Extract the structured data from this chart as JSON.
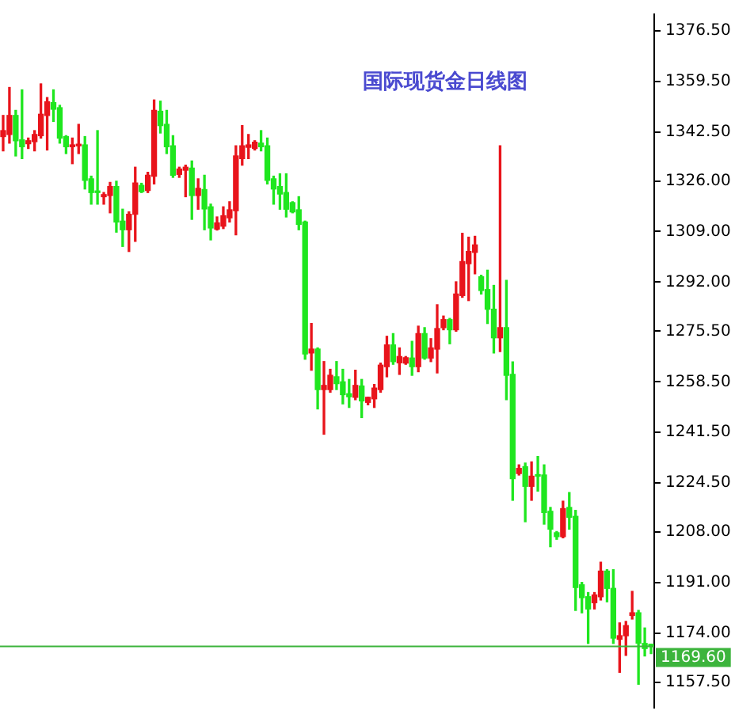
{
  "chart_data": {
    "type": "candlestick",
    "title": "国际现货金日线图",
    "categories": [
      null,
      null,
      null,
      null,
      null,
      null,
      null,
      null,
      null,
      null,
      null,
      null,
      null,
      null,
      null,
      null,
      null,
      null,
      null,
      null,
      null,
      null,
      null,
      null,
      null,
      null,
      null,
      null,
      null,
      null,
      null,
      null,
      null,
      null,
      null,
      null,
      null,
      null,
      null,
      null,
      null,
      null,
      null,
      null,
      null,
      null,
      null,
      null,
      null,
      null,
      null,
      null,
      null,
      null,
      null,
      null,
      null,
      null,
      null,
      null,
      null,
      null,
      null,
      null,
      null,
      null,
      null,
      null,
      null,
      null,
      null,
      null,
      null,
      null,
      null,
      null,
      null,
      null,
      null,
      null,
      null,
      null,
      null,
      null,
      null,
      null,
      null,
      null,
      null,
      null,
      null,
      null,
      null,
      null,
      null,
      null,
      null,
      null,
      null,
      null,
      null,
      null,
      null,
      null
    ],
    "ohlc": [
      [
        1340.9,
        1348.0,
        1336.1,
        1342.9
      ],
      [
        1341.6,
        1357.4,
        1338.7,
        1348.0
      ],
      [
        1348.0,
        1349.7,
        1334.4,
        1339.5
      ],
      [
        1339.8,
        1356.6,
        1333.5,
        1337.5
      ],
      [
        1338.5,
        1340.4,
        1336.9,
        1339.5
      ],
      [
        1339.2,
        1342.9,
        1336.1,
        1341.6
      ],
      [
        1341.2,
        1358.6,
        1340.4,
        1348.4
      ],
      [
        1348.0,
        1354.0,
        1336.4,
        1352.6
      ],
      [
        1352.3,
        1356.6,
        1346.0,
        1350.1
      ],
      [
        1350.6,
        1351.4,
        1338.7,
        1340.4
      ],
      [
        1340.9,
        1341.2,
        1335.2,
        1337.5
      ],
      [
        1337.5,
        1340.4,
        1331.8,
        1338.1
      ],
      [
        1337.8,
        1345.0,
        1335.2,
        1338.1
      ],
      [
        1338.1,
        1340.9,
        1323.3,
        1326.2
      ],
      [
        1326.7,
        1327.6,
        1318.2,
        1322.1
      ],
      [
        1322.4,
        1342.9,
        1318.2,
        1322.1
      ],
      [
        1320.7,
        1322.1,
        1318.2,
        1321.4
      ],
      [
        1321.1,
        1325.5,
        1315.3,
        1324.1
      ],
      [
        1324.1,
        1325.9,
        1308.8,
        1312.2
      ],
      [
        1312.5,
        1316.5,
        1304.0,
        1309.6
      ],
      [
        1309.6,
        1315.6,
        1302.3,
        1314.8
      ],
      [
        1314.8,
        1330.6,
        1305.7,
        1325.3
      ],
      [
        1324.5,
        1325.2,
        1322.1,
        1322.4
      ],
      [
        1322.8,
        1328.9,
        1322.1,
        1327.9
      ],
      [
        1327.6,
        1353.2,
        1325.0,
        1349.7
      ],
      [
        1349.4,
        1352.8,
        1342.1,
        1344.6
      ],
      [
        1345.0,
        1349.7,
        1335.2,
        1337.5
      ],
      [
        1337.8,
        1341.2,
        1327.2,
        1327.9
      ],
      [
        1328.2,
        1330.6,
        1327.2,
        1330.0
      ],
      [
        1329.6,
        1331.3,
        1320.7,
        1330.6
      ],
      [
        1330.3,
        1332.7,
        1313.1,
        1321.1
      ],
      [
        1321.1,
        1326.7,
        1316.5,
        1323.5
      ],
      [
        1323.1,
        1327.9,
        1309.6,
        1316.6
      ],
      [
        1317.3,
        1318.2,
        1306.2,
        1310.2
      ],
      [
        1309.8,
        1313.9,
        1309.5,
        1311.9
      ],
      [
        1310.8,
        1317.3,
        1310.0,
        1314.3
      ],
      [
        1313.6,
        1319.0,
        1312.2,
        1316.3
      ],
      [
        1316.0,
        1337.8,
        1307.9,
        1334.4
      ],
      [
        1333.5,
        1344.6,
        1331.3,
        1337.8
      ],
      [
        1337.3,
        1341.6,
        1333.5,
        1338.1
      ],
      [
        1336.9,
        1339.5,
        1336.4,
        1339.0
      ],
      [
        1338.7,
        1342.9,
        1336.1,
        1337.5
      ],
      [
        1337.8,
        1340.4,
        1325.0,
        1326.2
      ],
      [
        1326.7,
        1327.6,
        1318.2,
        1323.3
      ],
      [
        1324.1,
        1328.4,
        1316.5,
        1321.6
      ],
      [
        1322.1,
        1328.4,
        1313.9,
        1316.5
      ],
      [
        1318.7,
        1319.0,
        1315.3,
        1315.6
      ],
      [
        1316.3,
        1320.7,
        1309.6,
        1311.4
      ],
      [
        1312.2,
        1312.5,
        1266.1,
        1267.9
      ],
      [
        1268.2,
        1278.1,
        1262.4,
        1269.5
      ],
      [
        1269.5,
        1269.9,
        1249.4,
        1255.9
      ],
      [
        1255.9,
        1265.3,
        1240.9,
        1257.3
      ],
      [
        1255.9,
        1262.7,
        1255.0,
        1260.7
      ],
      [
        1260.2,
        1265.3,
        1255.9,
        1257.9
      ],
      [
        1258.5,
        1262.7,
        1251.1,
        1254.2
      ],
      [
        1254.5,
        1259.3,
        1249.9,
        1253.5
      ],
      [
        1253.3,
        1262.4,
        1252.5,
        1257.3
      ],
      [
        1257.1,
        1259.3,
        1246.5,
        1252.1
      ],
      [
        1251.6,
        1253.3,
        1250.8,
        1253.3
      ],
      [
        1252.8,
        1257.6,
        1249.9,
        1256.4
      ],
      [
        1255.9,
        1264.8,
        1255.0,
        1264.1
      ],
      [
        1263.6,
        1273.8,
        1260.2,
        1270.9
      ],
      [
        1270.9,
        1274.7,
        1264.4,
        1265.3
      ],
      [
        1264.9,
        1269.9,
        1261.0,
        1267.0
      ],
      [
        1264.8,
        1267.0,
        1264.4,
        1266.6
      ],
      [
        1266.5,
        1272.1,
        1260.7,
        1263.6
      ],
      [
        1263.6,
        1277.2,
        1261.9,
        1274.7
      ],
      [
        1274.7,
        1276.7,
        1266.1,
        1266.5
      ],
      [
        1266.5,
        1273.0,
        1265.3,
        1269.9
      ],
      [
        1269.5,
        1284.4,
        1261.5,
        1276.4
      ],
      [
        1276.7,
        1280.6,
        1276.0,
        1279.4
      ],
      [
        1279.4,
        1279.8,
        1271.3,
        1276.0
      ],
      [
        1276.0,
        1292.1,
        1275.5,
        1288.0
      ],
      [
        1287.5,
        1308.4,
        1286.9,
        1298.9
      ],
      [
        1298.2,
        1307.1,
        1285.8,
        1302.3
      ],
      [
        1302.0,
        1307.4,
        1294.8,
        1304.5
      ],
      [
        1293.8,
        1294.3,
        1288.0,
        1289.2
      ],
      [
        1289.5,
        1296.0,
        1278.1,
        1282.9
      ],
      [
        1282.9,
        1290.9,
        1268.2,
        1273.3
      ],
      [
        1273.3,
        1337.8,
        1268.7,
        1276.7
      ],
      [
        1276.7,
        1292.6,
        1252.5,
        1260.7
      ],
      [
        1261.0,
        1265.2,
        1218.7,
        1226.0
      ],
      [
        1227.7,
        1230.6,
        1227.2,
        1229.4
      ],
      [
        1230.0,
        1231.2,
        1211.5,
        1223.4
      ],
      [
        1223.4,
        1231.6,
        1218.7,
        1226.8
      ],
      [
        1227.2,
        1233.4,
        1221.8,
        1226.8
      ],
      [
        1227.2,
        1230.6,
        1210.7,
        1214.6
      ],
      [
        1215.0,
        1216.3,
        1203.1,
        1209.0
      ],
      [
        1207.8,
        1208.2,
        1205.6,
        1206.5
      ],
      [
        1206.5,
        1218.4,
        1206.1,
        1215.9
      ],
      [
        1216.3,
        1221.3,
        1209.0,
        1213.0
      ],
      [
        1213.3,
        1215.3,
        1181.7,
        1189.4
      ],
      [
        1190.3,
        1191.1,
        1180.9,
        1186.0
      ],
      [
        1186.3,
        1187.7,
        1170.6,
        1182.2
      ],
      [
        1184.3,
        1187.7,
        1182.2,
        1186.9
      ],
      [
        1186.3,
        1197.9,
        1185.2,
        1194.9
      ],
      [
        1194.9,
        1195.4,
        1184.6,
        1189.1
      ],
      [
        1189.1,
        1195.4,
        1170.6,
        1172.4
      ],
      [
        1172.0,
        1177.5,
        1160.9,
        1173.2
      ],
      [
        1173.2,
        1178.0,
        1166.6,
        1176.6
      ],
      [
        1180.0,
        1188.1,
        1178.8,
        1180.9
      ],
      [
        1180.9,
        1181.7,
        1156.9,
        1170.7
      ],
      [
        1170.6,
        1175.8,
        1166.4,
        1168.9
      ],
      [
        1170.3,
        1170.3,
        1167.2,
        1169.6
      ]
    ],
    "colors": [
      "#e8141b",
      "#e8141b",
      "#1fe61f",
      "#1fe61f",
      "#e8141b",
      "#e8141b",
      "#e8141b",
      "#e8141b",
      "#1fe61f",
      "#1fe61f",
      "#1fe61f",
      "#e8141b",
      "#e8141b",
      "#1fe61f",
      "#1fe61f",
      "#1fe61f",
      "#e8141b",
      "#e8141b",
      "#1fe61f",
      "#1fe61f",
      "#e8141b",
      "#e8141b",
      "#1fe61f",
      "#e8141b",
      "#e8141b",
      "#1fe61f",
      "#1fe61f",
      "#1fe61f",
      "#e8141b",
      "#e8141b",
      "#1fe61f",
      "#e8141b",
      "#1fe61f",
      "#1fe61f",
      "#e8141b",
      "#e8141b",
      "#e8141b",
      "#e8141b",
      "#e8141b",
      "#e8141b",
      "#e8141b",
      "#1fe61f",
      "#1fe61f",
      "#1fe61f",
      "#1fe61f",
      "#1fe61f",
      "#1fe61f",
      "#1fe61f",
      "#1fe61f",
      "#e8141b",
      "#1fe61f",
      "#e8141b",
      "#e8141b",
      "#1fe61f",
      "#1fe61f",
      "#1fe61f",
      "#e8141b",
      "#1fe61f",
      "#e8141b",
      "#e8141b",
      "#e8141b",
      "#e8141b",
      "#1fe61f",
      "#e8141b",
      "#e8141b",
      "#1fe61f",
      "#e8141b",
      "#1fe61f",
      "#e8141b",
      "#e8141b",
      "#e8141b",
      "#1fe61f",
      "#e8141b",
      "#e8141b",
      "#e8141b",
      "#e8141b",
      "#1fe61f",
      "#1fe61f",
      "#1fe61f",
      "#e8141b",
      "#1fe61f",
      "#1fe61f",
      "#e8141b",
      "#1fe61f",
      "#e8141b",
      "#1fe61f",
      "#1fe61f",
      "#1fe61f",
      "#1fe61f",
      "#e8141b",
      "#1fe61f",
      "#1fe61f",
      "#1fe61f",
      "#1fe61f",
      "#e8141b",
      "#e8141b",
      "#1fe61f",
      "#1fe61f",
      "#e8141b",
      "#e8141b",
      "#e8141b",
      "#1fe61f",
      "#1fe61f",
      "#1fe61f"
    ],
    "ylim": [
      1149,
      1382
    ],
    "yticks": [
      {
        "value": 1157.5,
        "label": "1157.50"
      },
      {
        "value": 1174,
        "label": "1174.00"
      },
      {
        "value": 1191,
        "label": "1191.00"
      },
      {
        "value": 1208,
        "label": "1208.00"
      },
      {
        "value": 1224.5,
        "label": "1224.50"
      },
      {
        "value": 1241.5,
        "label": "1241.50"
      },
      {
        "value": 1258.5,
        "label": "1258.50"
      },
      {
        "value": 1275.5,
        "label": "1275.50"
      },
      {
        "value": 1292,
        "label": "1292.00"
      },
      {
        "value": 1309,
        "label": "1309.00"
      },
      {
        "value": 1326,
        "label": "1326.00"
      },
      {
        "value": 1342.5,
        "label": "1342.50"
      },
      {
        "value": 1359.5,
        "label": "1359.50"
      },
      {
        "value": 1376.5,
        "label": "1376.50"
      }
    ],
    "ref_lines": [
      {
        "axis": "y",
        "value": 1169.6,
        "label": "1169.60",
        "color": "#3cb43c"
      }
    ]
  }
}
